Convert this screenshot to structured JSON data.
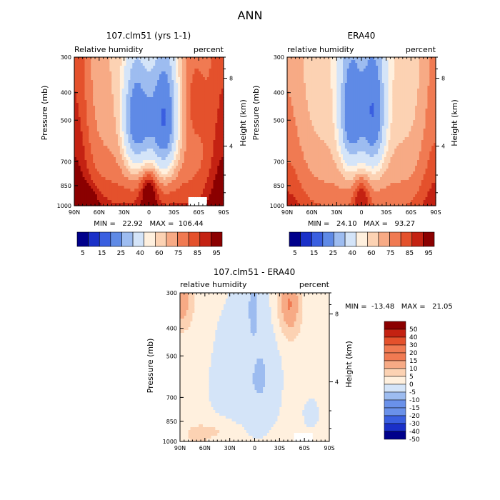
{
  "figure_title": "ANN",
  "colors": {
    "palette_abs": [
      "#00008b",
      "#1a30c8",
      "#3a5fe0",
      "#5f8ae6",
      "#9dbcf0",
      "#d4e4f8",
      "#fff0de",
      "#fcd2b3",
      "#f7aa85",
      "#f07a52",
      "#e4512c",
      "#c42212",
      "#8b0000"
    ],
    "palette_diff": [
      "#00008b",
      "#1a30c8",
      "#3a5fe0",
      "#6a91ea",
      "#9dbcf0",
      "#d4e4f8",
      "#fff0de",
      "#fcd2b3",
      "#f7aa85",
      "#f07a52",
      "#e4512c",
      "#c42212",
      "#8b0000"
    ]
  },
  "chart_data": [
    {
      "type": "heatmap",
      "title": "107.clm51 (yrs 1-1)",
      "left_label": "Relative humidity",
      "right_label": "percent",
      "ylabel": "Pressure (mb)",
      "y2label": "Height (km)",
      "x_ticks": [
        "90N",
        "60N",
        "30N",
        "0",
        "30S",
        "60S",
        "90S"
      ],
      "y_ticks": [
        "300",
        "400",
        "500",
        "700",
        "850",
        "1000"
      ],
      "y_ticks_pressure": [
        300,
        400,
        500,
        700,
        850,
        1000
      ],
      "y2_ticks": [
        "8",
        "4"
      ],
      "y2_ticks_pressure": [
        356,
        617
      ],
      "xlim": [
        90,
        -90
      ],
      "ylim": [
        1000,
        300
      ],
      "stats": "MIN =   22.92   MAX =  106.44",
      "colorbar_labels": [
        "5",
        "15",
        "25",
        "40",
        "60",
        "75",
        "85",
        "95"
      ],
      "levels": [
        5,
        10,
        15,
        20,
        25,
        30,
        40,
        50,
        60,
        70,
        75,
        80,
        85,
        90,
        95
      ],
      "masked_region": {
        "lat": [
          -48,
          -70
        ],
        "pressure": [
          930,
          1000
        ]
      }
    },
    {
      "type": "heatmap",
      "title": "ERA40",
      "left_label": "relative humidity",
      "right_label": "percent",
      "ylabel": "Pressure (mb)",
      "y2label": "Height (km)",
      "x_ticks": [
        "90N",
        "60N",
        "30N",
        "0",
        "30S",
        "60S",
        "90S"
      ],
      "y_ticks": [
        "300",
        "400",
        "500",
        "700",
        "850",
        "1000"
      ],
      "y_ticks_pressure": [
        300,
        400,
        500,
        700,
        850,
        1000
      ],
      "y2_ticks": [
        "8",
        "4"
      ],
      "y2_ticks_pressure": [
        356,
        617
      ],
      "xlim": [
        90,
        -90
      ],
      "ylim": [
        1000,
        300
      ],
      "stats": "MIN =   24.10   MAX =   93.27",
      "colorbar_labels": [
        "5",
        "15",
        "25",
        "40",
        "60",
        "75",
        "85",
        "95"
      ],
      "levels": [
        5,
        10,
        15,
        20,
        25,
        30,
        40,
        50,
        60,
        70,
        75,
        80,
        85,
        90,
        95
      ]
    },
    {
      "type": "heatmap",
      "title": "107.clm51 - ERA40",
      "left_label": "relative humidity",
      "right_label": "percent",
      "ylabel": "Pressure (mb)",
      "y2label": "Height (km)",
      "x_ticks": [
        "90N",
        "60N",
        "30N",
        "0",
        "30S",
        "60S",
        "90S"
      ],
      "y_ticks": [
        "300",
        "400",
        "500",
        "700",
        "850",
        "1000"
      ],
      "y_ticks_pressure": [
        300,
        400,
        500,
        700,
        850,
        1000
      ],
      "y2_ticks": [
        "8",
        "4"
      ],
      "y2_ticks_pressure": [
        356,
        617
      ],
      "xlim": [
        90,
        -90
      ],
      "ylim": [
        1000,
        300
      ],
      "stats": "MIN =  -13.48   MAX =   21.05",
      "colorbar_labels": [
        "50",
        "40",
        "30",
        "20",
        "15",
        "10",
        "5",
        "0",
        "-5",
        "-10",
        "-15",
        "-20",
        "-30",
        "-40",
        "-50"
      ],
      "levels": [
        -50,
        -40,
        -30,
        -20,
        -15,
        -10,
        -5,
        0,
        5,
        10,
        15,
        20,
        30,
        40,
        50
      ],
      "masked_region": {
        "lat": [
          -48,
          -70
        ],
        "pressure": [
          930,
          1000
        ]
      }
    }
  ]
}
